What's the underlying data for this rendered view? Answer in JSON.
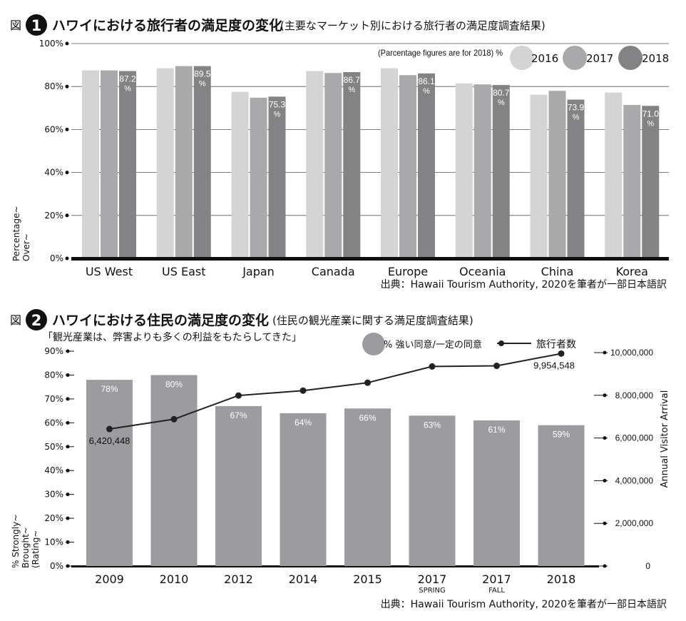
{
  "chart_data": [
    {
      "type": "bar",
      "fig_label": "図",
      "fig_number": "1",
      "title": "ハワイにおける旅行者の満足度の変化",
      "subtitle": "(主要なマーケット別における旅行者の満足度調査結果)",
      "note": "(Parcentage figures are for 2018) %",
      "ylabel_lines": [
        "Percentage~",
        "Over~"
      ],
      "y_ticks": [
        "0%",
        "20%",
        "40%",
        "60%",
        "80%",
        "100%"
      ],
      "ylim": [
        0,
        100
      ],
      "categories": [
        "US West",
        "US East",
        "Japan",
        "Canada",
        "Europe",
        "Oceania",
        "China",
        "Korea"
      ],
      "series": [
        {
          "name": "2016",
          "color": "#d4d4d4",
          "values": [
            87.5,
            88.5,
            77.5,
            87.2,
            88.5,
            81.5,
            76.2,
            77.2
          ]
        },
        {
          "name": "2017",
          "color": "#a9a9ab",
          "values": [
            87.5,
            89.5,
            74.8,
            86.3,
            85.3,
            81.0,
            78.0,
            71.4
          ]
        },
        {
          "name": "2018",
          "color": "#838386",
          "values": [
            87.2,
            89.5,
            75.3,
            86.7,
            86.1,
            80.7,
            73.9,
            71.0
          ]
        }
      ],
      "value_labels": [
        "87.2",
        "89.5",
        "75.3",
        "86.7",
        "86.1",
        "80.7",
        "73.9",
        "71.0"
      ],
      "value_unit": "%",
      "source": "出典：Hawaii Tourism Authority, 2020を筆者が一部日本語訳"
    },
    {
      "type": "bar+line",
      "fig_label": "図",
      "fig_number": "2",
      "title": "ハワイにおける住民の満足度の変化",
      "subtitle": "(住民の観光産業に関する満足度調査結果)",
      "quote": "「観光産業は、弊害よりも多くの利益をもたらしてきた」",
      "ylabel_left_lines": [
        "% Strongly~",
        "Brought~",
        "(Rating~"
      ],
      "ylabel_right": "Annual Visitor Arrival",
      "y_left_ticks": [
        "0%",
        "10%",
        "20%",
        "30%",
        "40%",
        "50%",
        "60%",
        "70%",
        "80%",
        "90%"
      ],
      "y_left_lim": [
        0,
        90
      ],
      "y_right_ticks": [
        "0",
        "2,000,000",
        "4,000,000",
        "6,000,000",
        "8,000,000",
        "10,000,000"
      ],
      "y_right_lim": [
        0,
        10000000
      ],
      "categories": [
        "2009",
        "2010",
        "2012",
        "2014",
        "2015",
        "2017",
        "2017",
        "2018"
      ],
      "category_sublabels": [
        "",
        "",
        "",
        "",
        "",
        "SPRING",
        "FALL",
        ""
      ],
      "bar_series": {
        "name": "% 強い同意/一定の同意",
        "color": "#9b9ba0",
        "values": [
          78,
          80,
          67,
          64,
          66,
          63,
          61,
          59
        ],
        "labels": [
          "78%",
          "80%",
          "67%",
          "64%",
          "66%",
          "63%",
          "61%",
          "59%"
        ]
      },
      "line_series": {
        "name": "旅行者数",
        "color": "#222222",
        "values": [
          6420448,
          6880000,
          7990000,
          8220000,
          8590000,
          9350000,
          9380000,
          9954548
        ]
      },
      "line_labels": {
        "first": "6,420,448",
        "last": "9,954,548"
      },
      "source": "出典：Hawaii Tourism Authority, 2020を筆者が一部日本語訳"
    }
  ]
}
